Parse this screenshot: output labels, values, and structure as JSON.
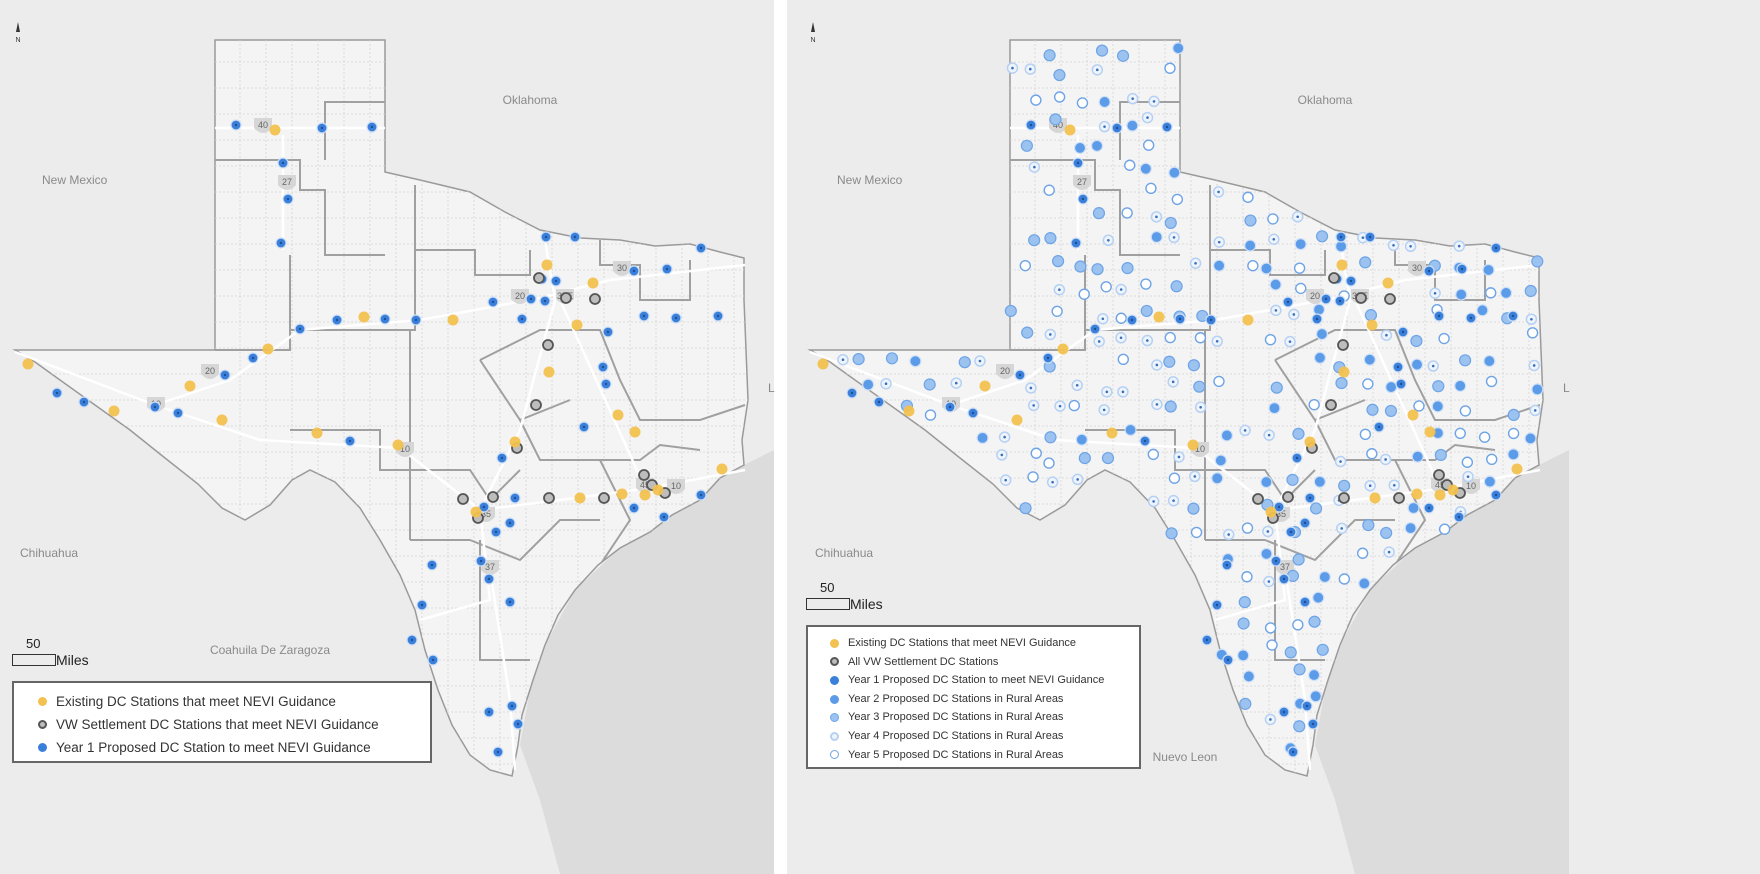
{
  "colors": {
    "existing": "#f2c14e",
    "vw": "#8c8c8c",
    "year1": "#3a7fd9",
    "year2": "#5b9be8",
    "year3": "#9cc2f0",
    "year4": "#b6d0f2",
    "year5": "#ffffff",
    "land": "#f4f4f4",
    "outside": "#ececec",
    "water": "#dcdcdc"
  },
  "left_map": {
    "north_label": "N",
    "places": {
      "oklahoma": "Oklahoma",
      "new_mexico": "New Mexico",
      "chihuahua": "Chihuahua",
      "coahuila": "Coahuila De Zaragoza",
      "louisiana": "L"
    },
    "scale": {
      "value": "50",
      "unit": "Miles"
    },
    "legend": [
      {
        "label": "Existing DC Stations that meet NEVI Guidance",
        "symbol": "existing"
      },
      {
        "label": "VW Settlement DC Stations that meet NEVI Guidance",
        "symbol": "vw"
      },
      {
        "label": "Year 1 Proposed DC Station to meet NEVI Guidance",
        "symbol": "year1"
      }
    ],
    "shields": [
      "40",
      "27",
      "20",
      "20",
      "10",
      "10",
      "30",
      "35E",
      "35",
      "45",
      "10",
      "37"
    ]
  },
  "right_map": {
    "north_label": "N",
    "places": {
      "oklahoma": "Oklahoma",
      "new_mexico": "New Mexico",
      "chihuahua": "Chihuahua",
      "nuevo_leon": "Nuevo Leon",
      "louisiana": "L"
    },
    "scale": {
      "value": "50",
      "unit": "Miles"
    },
    "legend": [
      {
        "label": "Existing DC Stations that meet NEVI Guidance",
        "symbol": "existing"
      },
      {
        "label": "All VW Settlement DC Stations",
        "symbol": "vw"
      },
      {
        "label": "Year 1 Proposed DC Station to meet NEVI Guidance",
        "symbol": "year1"
      },
      {
        "label": "Year 2 Proposed DC Stations in Rural Areas",
        "symbol": "year2"
      },
      {
        "label": "Year 3 Proposed DC Stations in Rural Areas",
        "symbol": "year3"
      },
      {
        "label": "Year 4 Proposed DC Stations in Rural Areas",
        "symbol": "year4"
      },
      {
        "label": "Year 5 Proposed DC Stations in Rural Areas",
        "symbol": "year5"
      }
    ],
    "shields": [
      "40",
      "27",
      "20",
      "20",
      "10",
      "10",
      "30",
      "35E",
      "35",
      "45",
      "10",
      "37"
    ]
  }
}
